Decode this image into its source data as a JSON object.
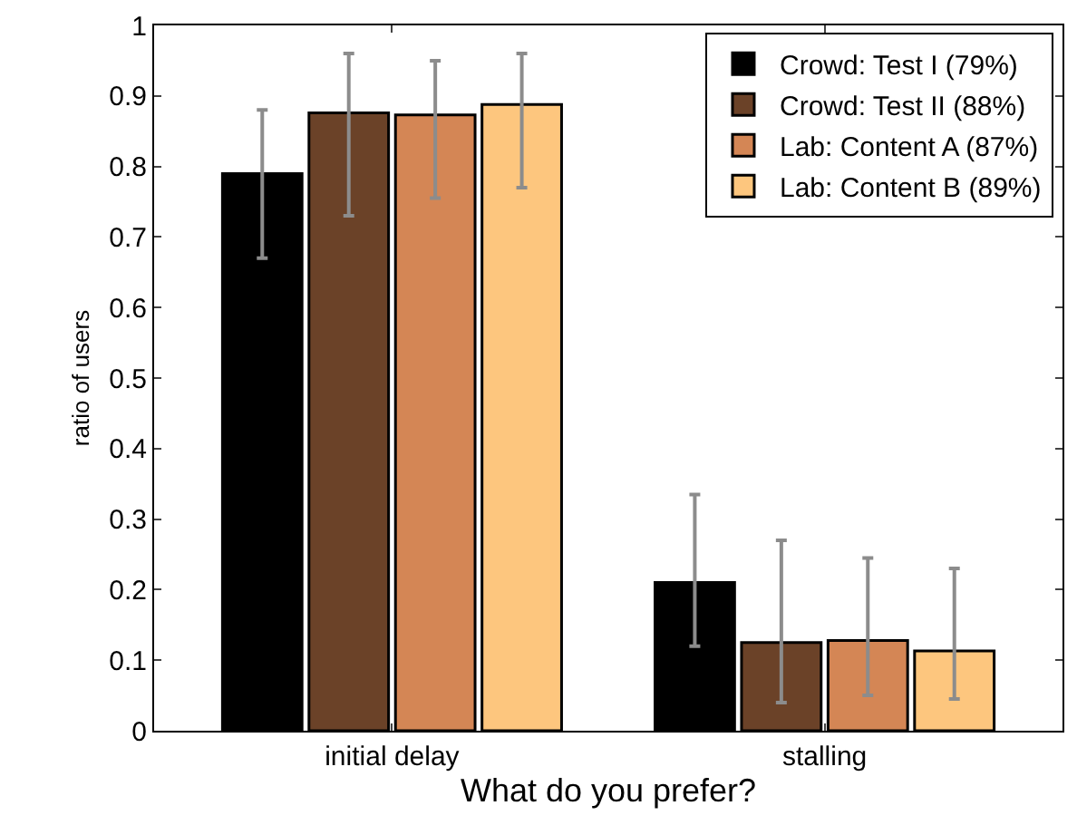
{
  "chart_data": {
    "type": "bar",
    "xlabel": "What do you prefer?",
    "ylabel": "ratio of users",
    "categories": [
      "initial delay",
      "stalling"
    ],
    "series": [
      {
        "name": "Crowd: Test I (79%)",
        "color": "#000000",
        "values": [
          0.79,
          0.21
        ],
        "errors": [
          [
            0.67,
            0.88
          ],
          [
            0.12,
            0.335
          ]
        ]
      },
      {
        "name": "Crowd: Test II (88%)",
        "color": "#6b4228",
        "values": [
          0.876,
          0.125
        ],
        "errors": [
          [
            0.73,
            0.96
          ],
          [
            0.04,
            0.27
          ]
        ]
      },
      {
        "name": "Lab: Content A (87%)",
        "color": "#d48655",
        "values": [
          0.873,
          0.128
        ],
        "errors": [
          [
            0.755,
            0.95
          ],
          [
            0.05,
            0.245
          ]
        ]
      },
      {
        "name": "Lab: Content B (89%)",
        "color": "#fdc67e",
        "values": [
          0.888,
          0.113
        ],
        "errors": [
          [
            0.77,
            0.96
          ],
          [
            0.045,
            0.23
          ]
        ]
      }
    ],
    "ylim": [
      0,
      1
    ],
    "yticks": [
      0,
      0.1,
      0.2,
      0.3,
      0.4,
      0.5,
      0.6,
      0.7,
      0.8,
      0.9,
      1
    ],
    "grid": false,
    "legend": "top right"
  }
}
